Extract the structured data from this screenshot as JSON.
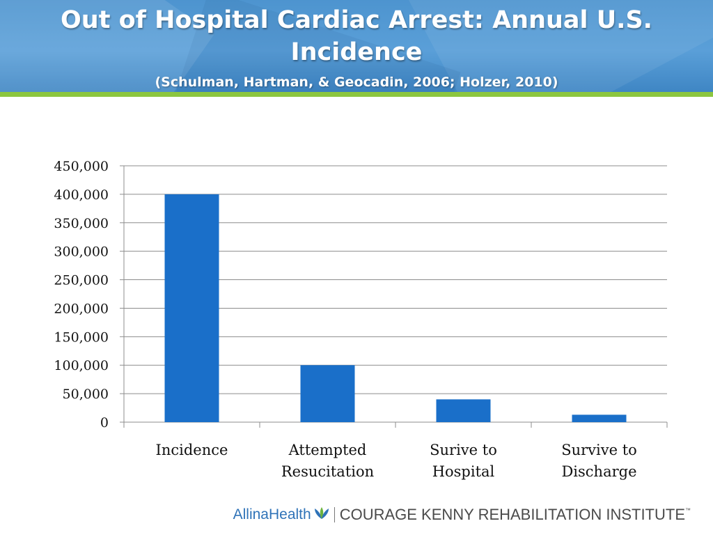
{
  "slide": {
    "title": "Out of Hospital Cardiac Arrest: Annual U.S. Incidence",
    "citation": "(Schulman, Hartman, & Geocadin, 2006; Holzer, 2010)"
  },
  "colors": {
    "header": "#5a9fd8",
    "accent_rule": "#8cc63f",
    "bar": "#1a6fc9"
  },
  "footer": {
    "allina_label": "AllinaHealth",
    "allina_icon": "allina-leaf-icon",
    "institute_label": "COURAGE KENNY REHABILITATION INSTITUTE",
    "tm": "™"
  },
  "chart_data": {
    "type": "bar",
    "categories": [
      [
        "Incidence"
      ],
      [
        "Attempted",
        "Resucitation"
      ],
      [
        "Surive to",
        "Hospital"
      ],
      [
        "Survive to",
        "Discharge"
      ]
    ],
    "values": [
      400000,
      100000,
      40000,
      13000
    ],
    "ylim": [
      0,
      450000
    ],
    "yticks": [
      0,
      50000,
      100000,
      150000,
      200000,
      250000,
      300000,
      350000,
      400000,
      450000
    ],
    "ytick_labels": [
      "0",
      "50,000",
      "100,000",
      "150,000",
      "200,000",
      "250,000",
      "300,000",
      "350,000",
      "400,000",
      "450,000"
    ],
    "grid": true,
    "legend": false
  }
}
